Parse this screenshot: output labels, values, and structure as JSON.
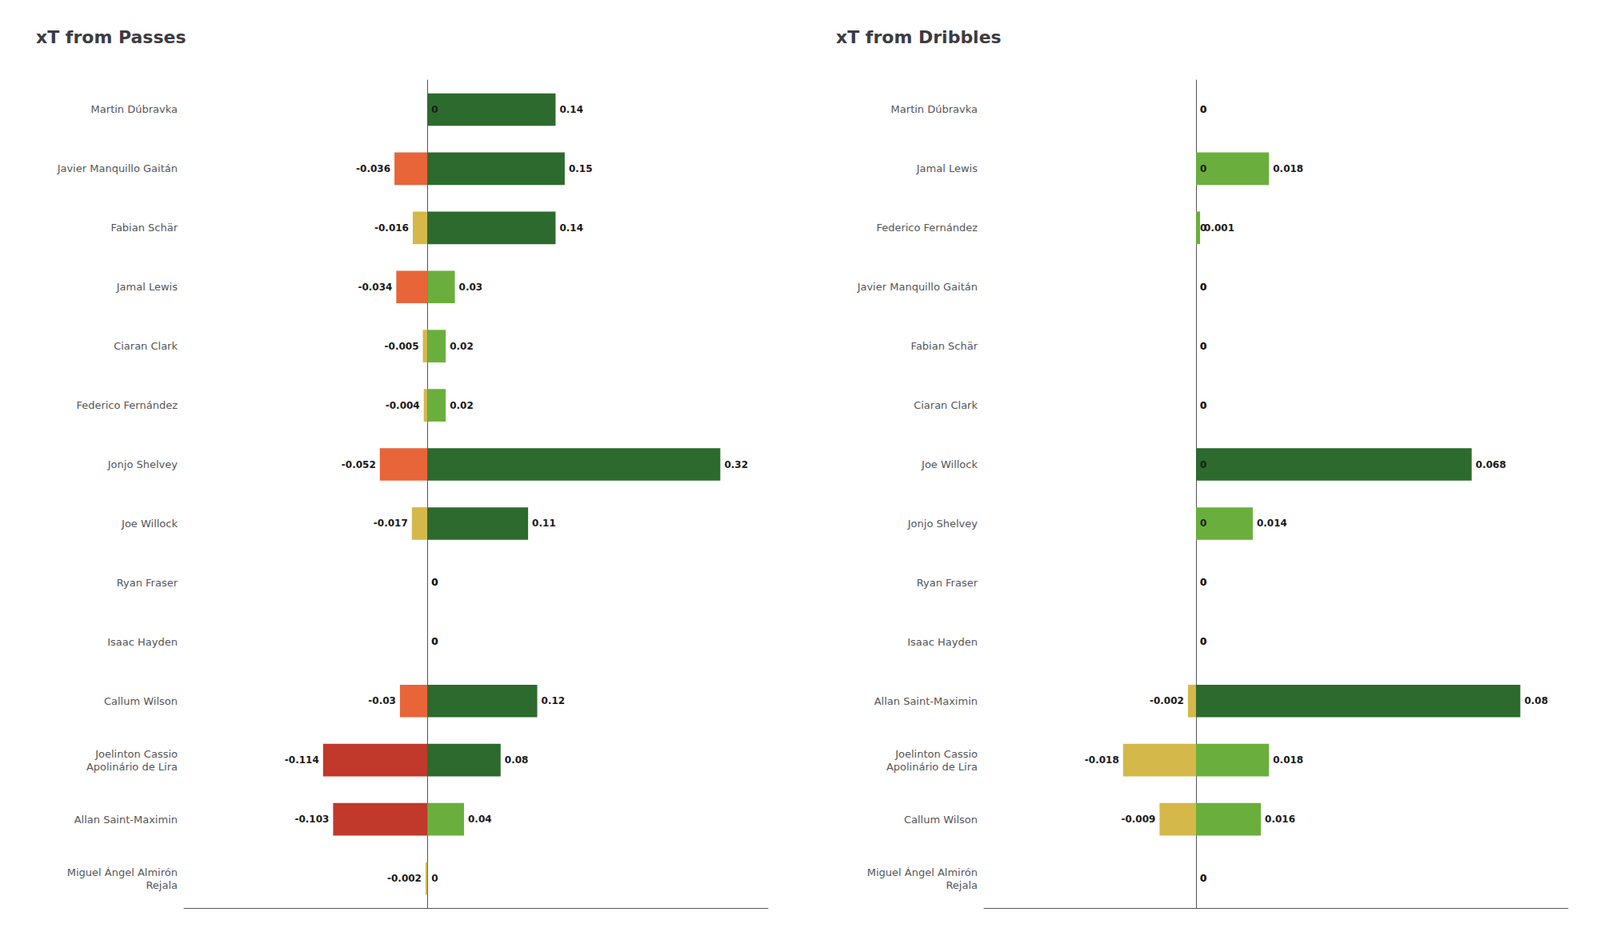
{
  "chart_data": [
    {
      "type": "bar",
      "orientation": "horizontal",
      "title": "xT from Passes",
      "categories": [
        "Martin Dúbravka",
        "Javier Manquillo Gaitán",
        "Fabian Schär",
        "Jamal Lewis",
        "Ciaran Clark",
        "Federico Fernández",
        "Jonjo Shelvey",
        "Joe Willock",
        "Ryan Fraser",
        "Isaac Hayden",
        "Callum Wilson",
        "Joelinton Cassio\nApolinário de Lira",
        "Allan Saint-Maximin",
        "Miguel Ángel Almirón\nRejala"
      ],
      "series": [
        {
          "values": [
            0,
            -0.036,
            -0.016,
            -0.034,
            -0.005,
            -0.004,
            -0.052,
            -0.017,
            0,
            0,
            -0.03,
            -0.114,
            -0.103,
            -0.002
          ],
          "colors": [
            "#D4B84A",
            "#E8653A",
            "#D4B84A",
            "#E8653A",
            "#D4B84A",
            "#D4B84A",
            "#E8653A",
            "#D4B84A",
            "#D4B84A",
            "#D4B84A",
            "#E8653A",
            "#C0392B",
            "#C0392B",
            "#D4B84A"
          ]
        },
        {
          "values": [
            0.14,
            0.15,
            0.14,
            0.03,
            0.02,
            0.02,
            0.32,
            0.11,
            0.0,
            0.0,
            0.12,
            0.08,
            0.04,
            0.0
          ],
          "colors": [
            "#2D6A2D",
            "#2D6A2D",
            "#2D6A2D",
            "#6AAF3D",
            "#6AAF3D",
            "#6AAF3D",
            "#2D6A2D",
            "#2D6A2D",
            "#6AAF3D",
            "#6AAF3D",
            "#2D6A2D",
            "#2D6A2D",
            "#6AAF3D",
            "#6AAF3D"
          ]
        }
      ],
      "xlim": [
        -0.2659,
        0.37208
      ],
      "data_labels": true,
      "tick_labels": "y",
      "grid": false
    },
    {
      "type": "bar",
      "orientation": "horizontal",
      "title": "xT from Dribbles",
      "categories": [
        "Martin Dúbravka",
        "Jamal Lewis",
        "Federico Fernández",
        "Javier Manquillo Gaitán",
        "Fabian Schär",
        "Ciaran Clark",
        "Joe Willock",
        "Jonjo Shelvey",
        "Ryan Fraser",
        "Isaac Hayden",
        "Allan Saint-Maximin",
        "Joelinton Cassio\nApolinário de Lira",
        "Callum Wilson",
        "Miguel Ángel Almirón\nRejala"
      ],
      "series": [
        {
          "values": [
            0,
            0,
            0,
            0,
            0,
            0,
            0,
            0,
            0,
            0,
            -0.002,
            -0.018,
            -0.009,
            0
          ],
          "colors": [
            "#D4B84A",
            "#D4B84A",
            "#D4B84A",
            "#D4B84A",
            "#D4B84A",
            "#D4B84A",
            "#D4B84A",
            "#D4B84A",
            "#D4B84A",
            "#D4B84A",
            "#D4B84A",
            "#D4B84A",
            "#D4B84A",
            "#D4B84A"
          ]
        },
        {
          "values": [
            0,
            0.018,
            0.001,
            0,
            0,
            0,
            0.068,
            0.014,
            0,
            0,
            0.08,
            0.018,
            0.016,
            0
          ],
          "colors": [
            "#6AAF3D",
            "#6AAF3D",
            "#6AAF3D",
            "#6AAF3D",
            "#6AAF3D",
            "#6AAF3D",
            "#2D6A2D",
            "#6AAF3D",
            "#6AAF3D",
            "#6AAF3D",
            "#2D6A2D",
            "#6AAF3D",
            "#6AAF3D",
            "#6AAF3D"
          ]
        }
      ],
      "xlim": [
        -0.0523,
        0.09176
      ],
      "data_labels": true,
      "tick_labels": "y",
      "grid": false
    }
  ]
}
